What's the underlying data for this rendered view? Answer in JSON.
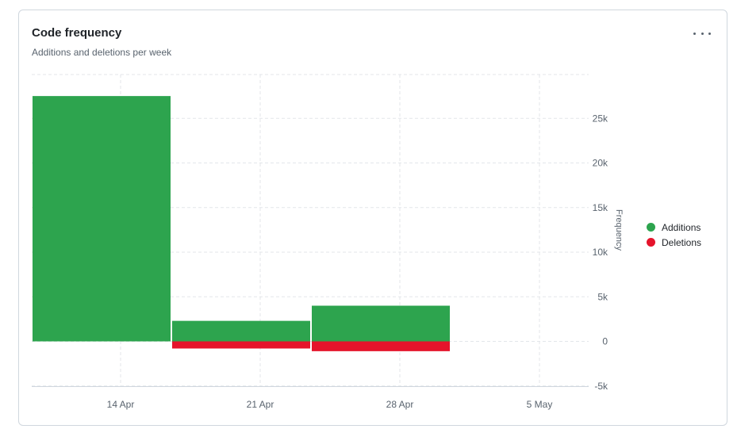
{
  "card": {
    "title": "Code frequency",
    "subtitle": "Additions and deletions per week",
    "menu_icon": "kebab-horizontal-icon"
  },
  "chart_data": {
    "type": "bar",
    "categories": [
      "14 Apr",
      "21 Apr",
      "28 Apr",
      "5 May"
    ],
    "series": [
      {
        "name": "Additions",
        "color": "#2da44e",
        "values": [
          27500,
          2300,
          4000,
          0
        ]
      },
      {
        "name": "Deletions",
        "color": "#e5142b",
        "values": [
          0,
          -800,
          -1100,
          0
        ]
      }
    ],
    "ylabel": "Frequency",
    "ylim": [
      -5000,
      30000
    ],
    "yticks": [
      {
        "value": 25000,
        "label": "25k"
      },
      {
        "value": 20000,
        "label": "20k"
      },
      {
        "value": 15000,
        "label": "15k"
      },
      {
        "value": 10000,
        "label": "10k"
      },
      {
        "value": 5000,
        "label": "5k"
      },
      {
        "value": 0,
        "label": "0"
      },
      {
        "value": -5000,
        "label": "-5k"
      }
    ],
    "yaxis_position": "right",
    "grid": true,
    "legend_position": "right"
  }
}
